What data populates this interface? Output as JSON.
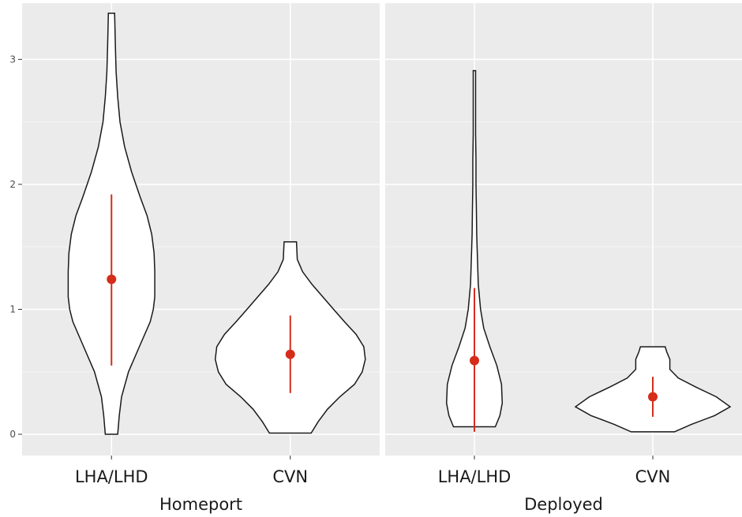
{
  "chart_data": {
    "type": "violin",
    "title": "",
    "ylabel": "",
    "ylim": [
      -0.17,
      3.45
    ],
    "y_ticks": [
      0,
      1,
      2,
      3
    ],
    "grid": true,
    "legend": "none",
    "marker_color": "#d62c1a",
    "panels": [
      {
        "label": "Homeport",
        "categories": [
          "LHA/LHD",
          "CVN"
        ],
        "groups": [
          {
            "category": "LHA/LHD",
            "mean": 1.24,
            "range": [
              0.55,
              1.92
            ],
            "data_min": 0.0,
            "data_max": 3.37,
            "density": [
              [
                0.0,
                0.08
              ],
              [
                0.15,
                0.1
              ],
              [
                0.3,
                0.13
              ],
              [
                0.5,
                0.22
              ],
              [
                0.7,
                0.36
              ],
              [
                0.9,
                0.5
              ],
              [
                1.0,
                0.54
              ],
              [
                1.1,
                0.56
              ],
              [
                1.3,
                0.56
              ],
              [
                1.45,
                0.55
              ],
              [
                1.6,
                0.52
              ],
              [
                1.75,
                0.46
              ],
              [
                1.9,
                0.37
              ],
              [
                2.1,
                0.26
              ],
              [
                2.3,
                0.17
              ],
              [
                2.5,
                0.11
              ],
              [
                2.7,
                0.08
              ],
              [
                2.9,
                0.06
              ],
              [
                3.1,
                0.05
              ],
              [
                3.37,
                0.04
              ]
            ]
          },
          {
            "category": "CVN",
            "mean": 0.64,
            "range": [
              0.33,
              0.95
            ],
            "data_min": 0.01,
            "data_max": 1.54,
            "density": [
              [
                0.01,
                0.27
              ],
              [
                0.1,
                0.36
              ],
              [
                0.2,
                0.48
              ],
              [
                0.3,
                0.64
              ],
              [
                0.4,
                0.83
              ],
              [
                0.5,
                0.93
              ],
              [
                0.6,
                0.97
              ],
              [
                0.7,
                0.95
              ],
              [
                0.8,
                0.85
              ],
              [
                0.9,
                0.7
              ],
              [
                1.0,
                0.56
              ],
              [
                1.1,
                0.42
              ],
              [
                1.2,
                0.28
              ],
              [
                1.3,
                0.16
              ],
              [
                1.4,
                0.09
              ],
              [
                1.54,
                0.08
              ]
            ]
          }
        ]
      },
      {
        "label": "Deployed",
        "categories": [
          "LHA/LHD",
          "CVN"
        ],
        "groups": [
          {
            "category": "LHA/LHD",
            "mean": 0.59,
            "range": [
              0.02,
              1.17
            ],
            "data_min": 0.06,
            "data_max": 2.91,
            "density": [
              [
                0.06,
                0.27
              ],
              [
                0.15,
                0.33
              ],
              [
                0.25,
                0.36
              ],
              [
                0.4,
                0.35
              ],
              [
                0.55,
                0.29
              ],
              [
                0.7,
                0.2
              ],
              [
                0.85,
                0.12
              ],
              [
                1.0,
                0.08
              ],
              [
                1.2,
                0.05
              ],
              [
                1.4,
                0.04
              ],
              [
                1.6,
                0.03
              ],
              [
                1.8,
                0.025
              ],
              [
                2.0,
                0.02
              ],
              [
                2.2,
                0.02
              ],
              [
                2.4,
                0.015
              ],
              [
                2.6,
                0.015
              ],
              [
                2.91,
                0.015
              ]
            ]
          },
          {
            "category": "CVN",
            "mean": 0.3,
            "range": [
              0.14,
              0.46
            ],
            "data_min": 0.02,
            "data_max": 0.7,
            "density": [
              [
                0.02,
                0.28
              ],
              [
                0.08,
                0.5
              ],
              [
                0.15,
                0.8
              ],
              [
                0.22,
                1.0
              ],
              [
                0.3,
                0.82
              ],
              [
                0.38,
                0.55
              ],
              [
                0.45,
                0.33
              ],
              [
                0.52,
                0.22
              ],
              [
                0.6,
                0.22
              ],
              [
                0.66,
                0.18
              ],
              [
                0.7,
                0.16
              ]
            ]
          }
        ]
      }
    ]
  }
}
